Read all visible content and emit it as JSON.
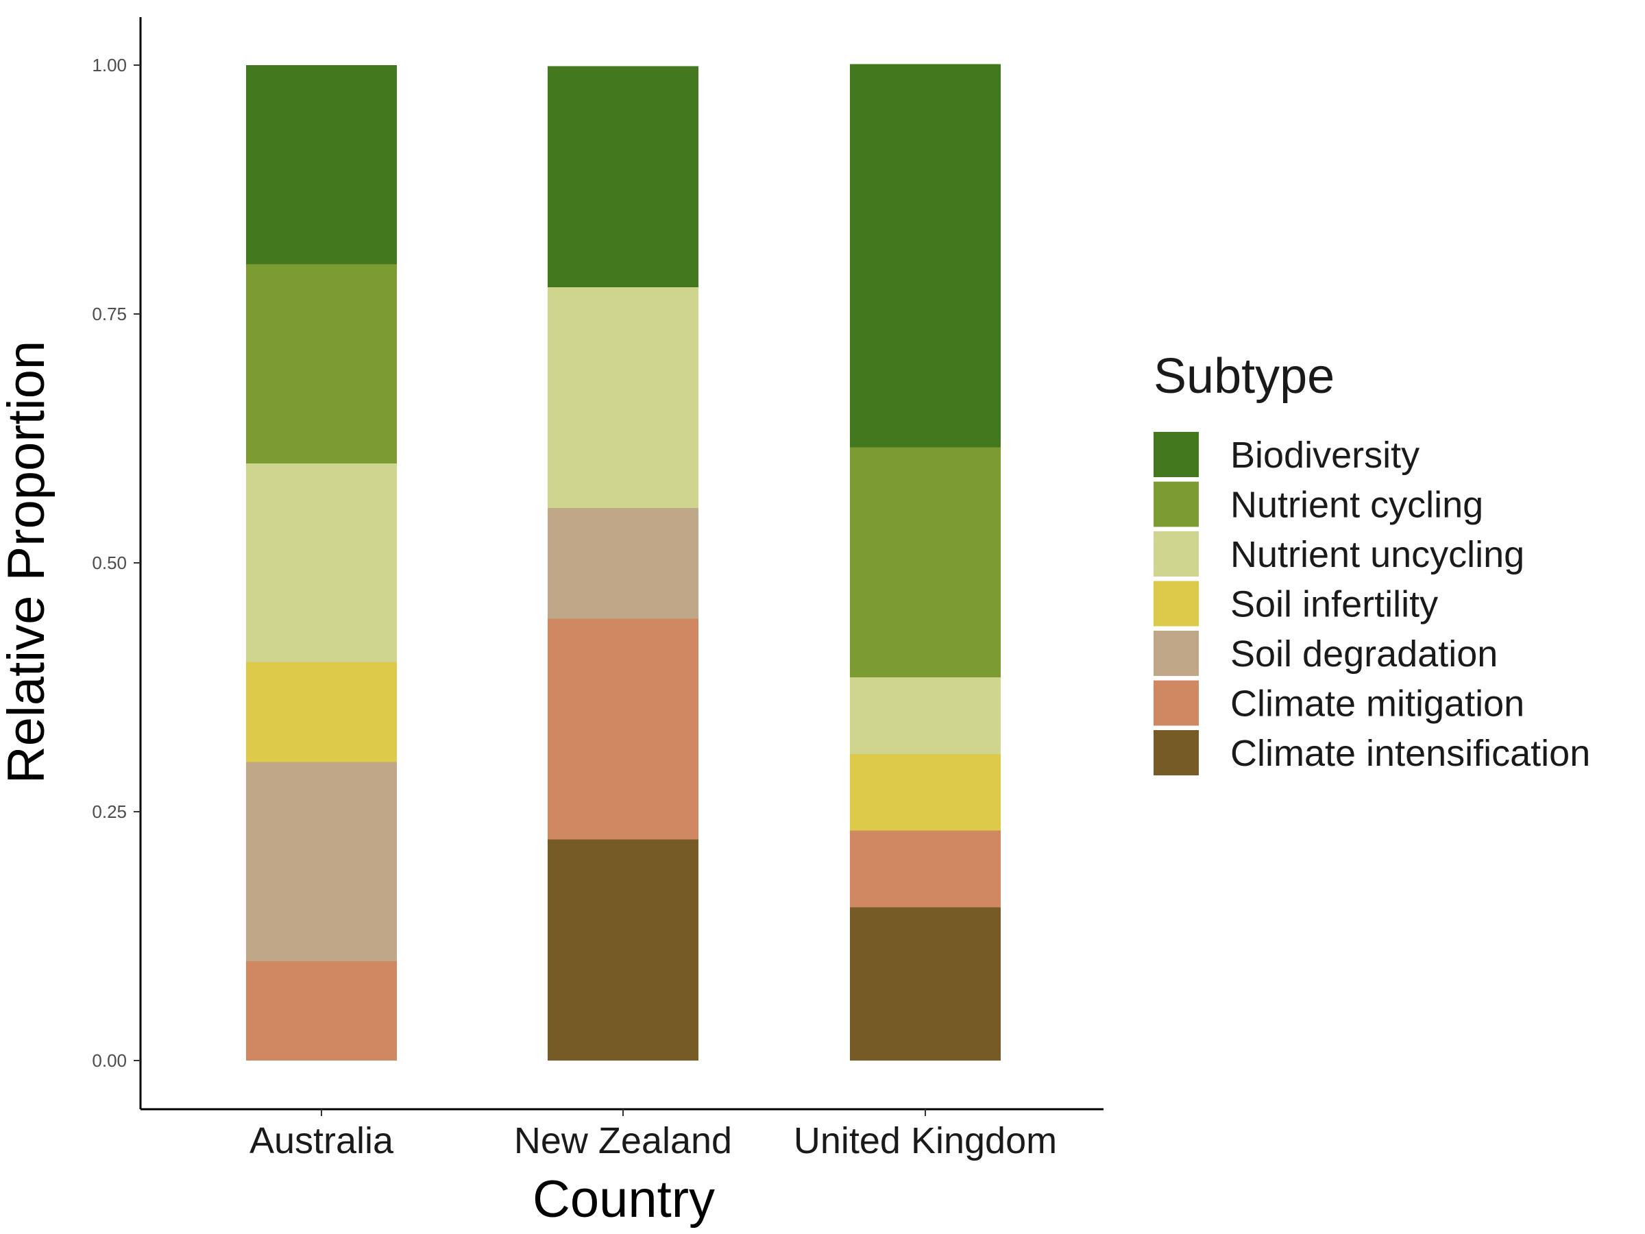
{
  "chart_data": {
    "type": "bar",
    "stacked": true,
    "xlabel": "Country",
    "ylabel": "Relative Proportion",
    "ylim": [
      0,
      1
    ],
    "yticks": [
      "0.00",
      "0.25",
      "0.50",
      "0.75",
      "1.00"
    ],
    "grid": false,
    "legend_position": "right",
    "legend_title": "Subtype",
    "categories": [
      "Australia",
      "New Zealand",
      "United Kingdom"
    ],
    "series": [
      {
        "name": "Biodiversity",
        "color": "#43781f",
        "values": [
          0.2,
          0.222,
          0.385
        ]
      },
      {
        "name": "Nutrient cycling",
        "color": "#7c9c33",
        "values": [
          0.2,
          0.0,
          0.231
        ]
      },
      {
        "name": "Nutrient uncycling",
        "color": "#cfd48f",
        "values": [
          0.2,
          0.222,
          0.077
        ]
      },
      {
        "name": "Soil infertility",
        "color": "#ddc94a",
        "values": [
          0.1,
          0.0,
          0.077
        ]
      },
      {
        "name": "Soil degradation",
        "color": "#bfa788",
        "values": [
          0.2,
          0.111,
          0.0
        ]
      },
      {
        "name": "Climate mitigation",
        "color": "#cf8862",
        "values": [
          0.1,
          0.222,
          0.077
        ]
      },
      {
        "name": "Climate intensification",
        "color": "#765b27",
        "values": [
          0.0,
          0.222,
          0.154
        ]
      }
    ]
  }
}
